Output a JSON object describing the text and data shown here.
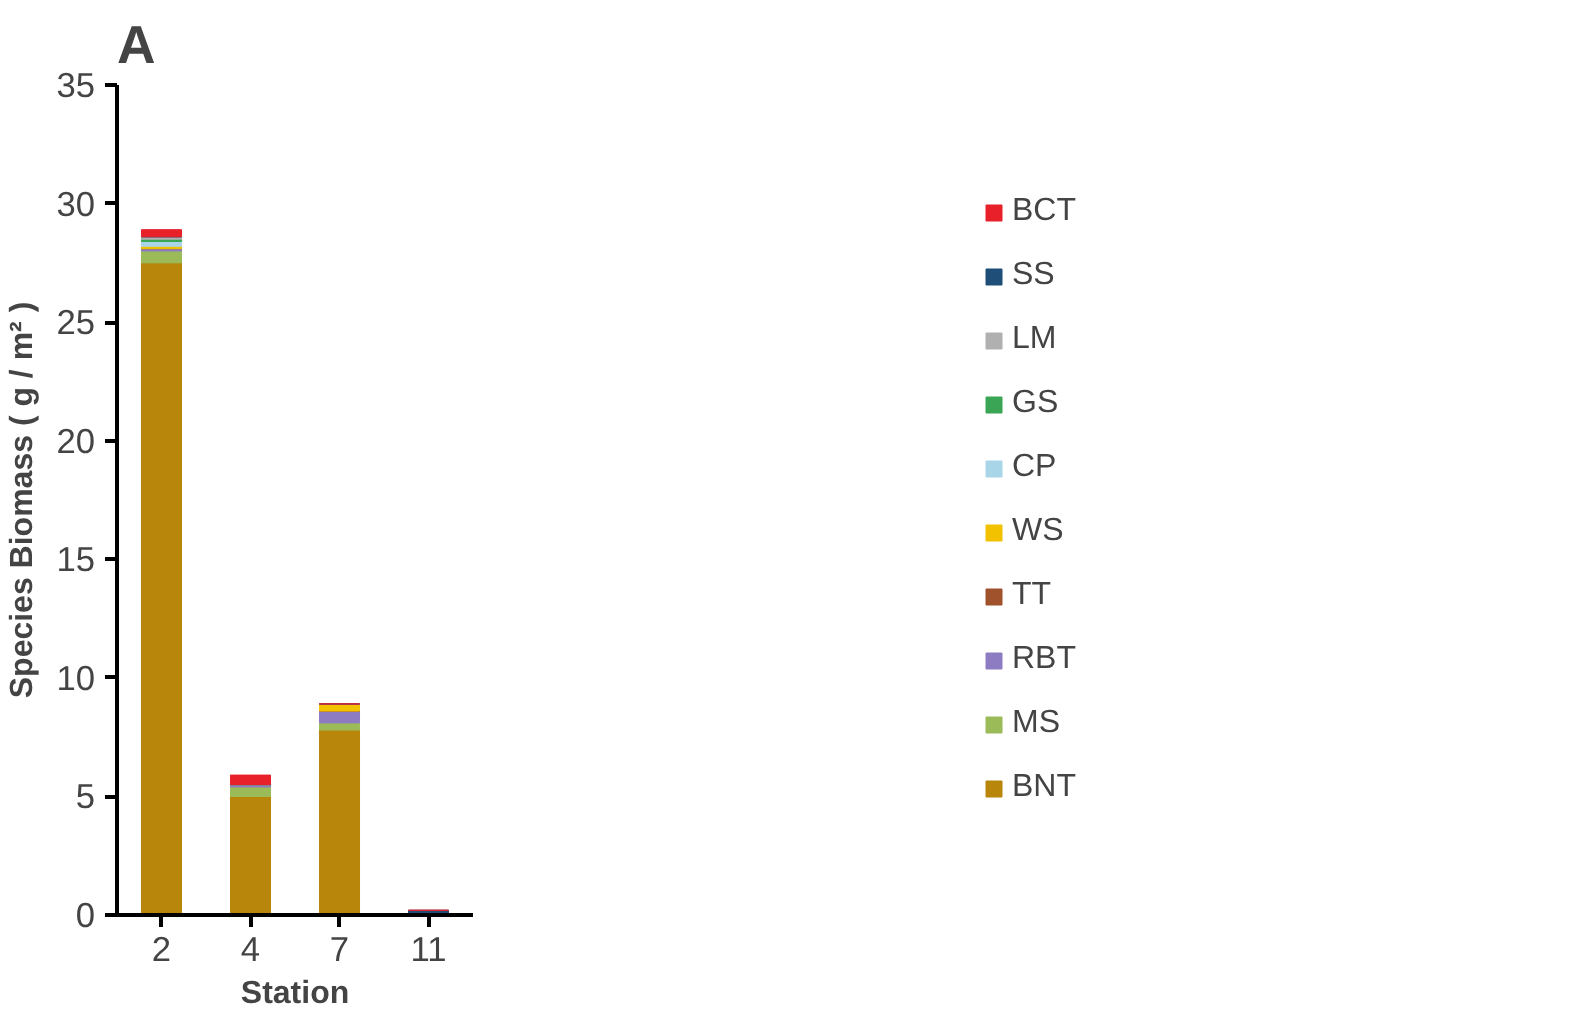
{
  "chart_data": {
    "type": "bar",
    "title": "A",
    "xlabel": "Station",
    "ylabel": "Species Biomass ( g / m² )",
    "categories": [
      "2",
      "4",
      "7",
      "11"
    ],
    "stacked": true,
    "ylim": [
      0,
      35
    ],
    "yticks": [
      0,
      5,
      10,
      15,
      20,
      25,
      30,
      35
    ],
    "grid": false,
    "legend": "right",
    "series": [
      {
        "name": "BNT",
        "color": "#b8860b",
        "values": [
          27.5,
          5.0,
          7.8,
          0
        ]
      },
      {
        "name": "MS",
        "color": "#9bbb59",
        "values": [
          0.5,
          0.4,
          0.3,
          0
        ]
      },
      {
        "name": "RBT",
        "color": "#8e7cc3",
        "values": [
          0.1,
          0.1,
          0.5,
          0
        ]
      },
      {
        "name": "TT",
        "color": "#a0522d",
        "values": [
          0,
          0,
          0,
          0
        ]
      },
      {
        "name": "WS",
        "color": "#f2c200",
        "values": [
          0.1,
          0,
          0.3,
          0
        ]
      },
      {
        "name": "CP",
        "color": "#a9d5e8",
        "values": [
          0.2,
          0,
          0,
          0
        ]
      },
      {
        "name": "GS",
        "color": "#3aa655",
        "values": [
          0.1,
          0,
          0,
          0
        ]
      },
      {
        "name": "LM",
        "color": "#b0b0b0",
        "values": [
          0.1,
          0,
          0,
          0
        ]
      },
      {
        "name": "SS",
        "color": "#1f4e79",
        "values": [
          0,
          0,
          0,
          0.2
        ]
      },
      {
        "name": "BCT",
        "color": "#e8202a",
        "values": [
          0.3,
          0.4,
          0,
          0
        ]
      }
    ]
  }
}
